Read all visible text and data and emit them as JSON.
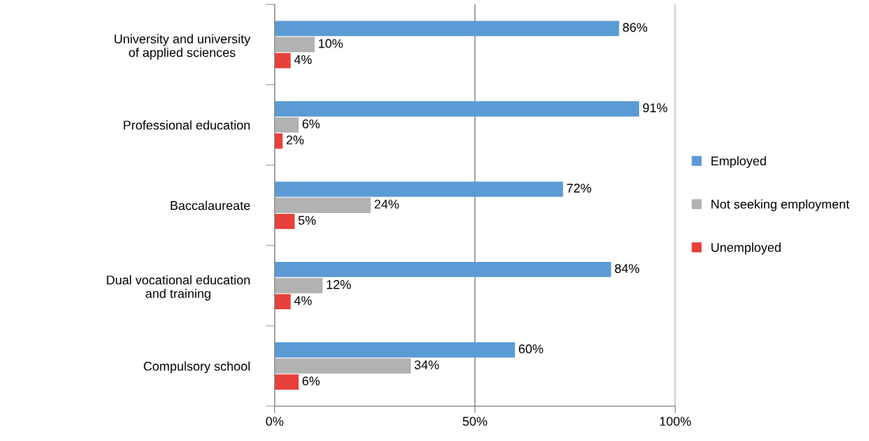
{
  "chart_data": {
    "type": "bar",
    "orientation": "horizontal",
    "categories": [
      "University and university\nof applied sciences",
      "Professional education",
      "Baccalaureate",
      "Dual vocational education\nand training",
      "Compulsory school"
    ],
    "series": [
      {
        "name": "Employed",
        "color": "#5b9bd5",
        "values": [
          86,
          91,
          72,
          84,
          60
        ],
        "value_labels": [
          "86%",
          "91%",
          "72%",
          "84%",
          "60%"
        ]
      },
      {
        "name": "Not seeking employment",
        "color": "#b2b2b2",
        "values": [
          10,
          6,
          24,
          12,
          34
        ],
        "value_labels": [
          "10%",
          "6%",
          "24%",
          "12%",
          "34%"
        ]
      },
      {
        "name": "Unemployed",
        "color": "#e8403a",
        "values": [
          4,
          2,
          5,
          4,
          6
        ],
        "value_labels": [
          "4%",
          "2%",
          "5%",
          "4%",
          "6%"
        ]
      }
    ],
    "xlim": [
      0,
      100
    ],
    "xticks": [
      {
        "value": 0,
        "label": "0%"
      },
      {
        "value": 50,
        "label": "50%"
      },
      {
        "value": 100,
        "label": "100%"
      }
    ],
    "grid": "x",
    "legend": "right"
  }
}
